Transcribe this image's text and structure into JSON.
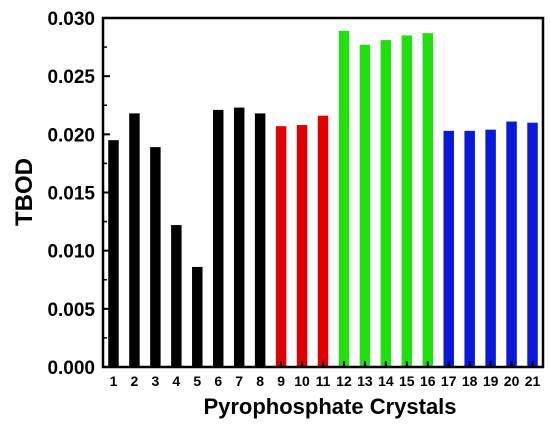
{
  "chart_data": {
    "type": "bar",
    "title": "",
    "xlabel": "Pyrophosphate Crystals",
    "ylabel": "TBOD",
    "categories": [
      "1",
      "2",
      "3",
      "4",
      "5",
      "6",
      "7",
      "8",
      "9",
      "10",
      "11",
      "12",
      "13",
      "14",
      "15",
      "16",
      "17",
      "18",
      "19",
      "20",
      "21"
    ],
    "values": [
      0.0195,
      0.0218,
      0.0189,
      0.0122,
      0.0086,
      0.0221,
      0.0223,
      0.0218,
      0.0207,
      0.0208,
      0.0216,
      0.0289,
      0.0277,
      0.0281,
      0.0285,
      0.0287,
      0.0203,
      0.0203,
      0.0204,
      0.0211,
      0.021
    ],
    "group_colors": [
      "#000000",
      "#000000",
      "#000000",
      "#000000",
      "#000000",
      "#000000",
      "#000000",
      "#000000",
      "#e00000",
      "#e00000",
      "#e00000",
      "#22e010",
      "#22e010",
      "#22e010",
      "#22e010",
      "#22e010",
      "#0a18d8",
      "#0a18d8",
      "#0a18d8",
      "#0a18d8",
      "#0a18d8"
    ],
    "ylim": [
      0,
      0.03
    ],
    "yticks": [
      "0.000",
      "0.005",
      "0.010",
      "0.015",
      "0.020",
      "0.025",
      "0.030"
    ],
    "grid": false,
    "legend": "none"
  }
}
